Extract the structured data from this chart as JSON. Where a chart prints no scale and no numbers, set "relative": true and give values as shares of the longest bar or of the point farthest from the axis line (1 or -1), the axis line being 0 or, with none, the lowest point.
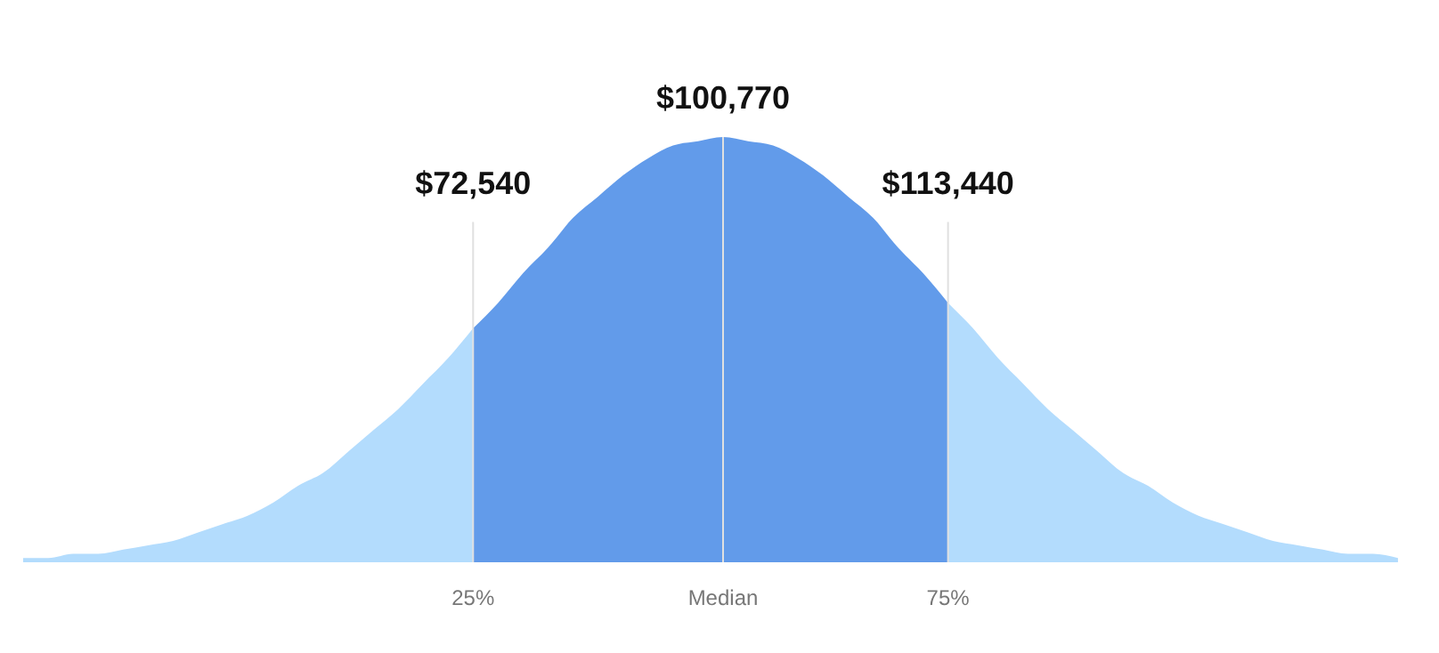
{
  "chart_data": {
    "type": "area",
    "relative": true,
    "categories": [
      null,
      null,
      null,
      null,
      null,
      null,
      null,
      null,
      null,
      null,
      null,
      null,
      null,
      null,
      null,
      null,
      null,
      null,
      "25%",
      null,
      null,
      null,
      null,
      null,
      null,
      null,
      null,
      null,
      "Median",
      null,
      null,
      null,
      null,
      null,
      null,
      null,
      null,
      "75%",
      null,
      null,
      null,
      null,
      null,
      null,
      null,
      null,
      null,
      null,
      null,
      null,
      null,
      null,
      null,
      null,
      null,
      null
    ],
    "series": [
      {
        "color": "#b3dcfd",
        "values": [
          0.01,
          0.01,
          0.02,
          0.02,
          0.03,
          0.04,
          0.05,
          0.07,
          0.09,
          0.11,
          0.14,
          0.18,
          0.21,
          0.26,
          0.31,
          0.36,
          0.42,
          0.48,
          0.55,
          null,
          null,
          null,
          null,
          null,
          null,
          null,
          null,
          null,
          null,
          null,
          null,
          null,
          null,
          null,
          null,
          null,
          null,
          0.61,
          0.55,
          0.48,
          0.42,
          0.36,
          0.31,
          0.26,
          0.21,
          0.18,
          0.14,
          0.11,
          0.09,
          0.07,
          0.05,
          0.04,
          0.03,
          0.02,
          0.02,
          0.01
        ]
      },
      {
        "color": "#629bea",
        "values": [
          null,
          null,
          null,
          null,
          null,
          null,
          null,
          null,
          null,
          null,
          null,
          null,
          null,
          null,
          null,
          null,
          null,
          null,
          0.55,
          0.61,
          0.68,
          0.74,
          0.81,
          0.86,
          0.91,
          0.95,
          0.98,
          0.99,
          1,
          0.99,
          0.98,
          0.95,
          0.91,
          0.86,
          0.81,
          0.74,
          0.68,
          0.61,
          null,
          null,
          null,
          null,
          null,
          null,
          null,
          null,
          null,
          null,
          null,
          null,
          null,
          null,
          null,
          null,
          null,
          null
        ]
      }
    ],
    "ref_lines": [
      {
        "axis": "x",
        "value": "25%",
        "label": "$72,540",
        "color": "#e0e0e0"
      },
      {
        "axis": "x",
        "value": "Median",
        "label": "$100,770",
        "color": "#e0e0e0"
      },
      {
        "axis": "x",
        "value": "75%",
        "label": "$113,440",
        "color": "#e0e0e0"
      }
    ]
  }
}
